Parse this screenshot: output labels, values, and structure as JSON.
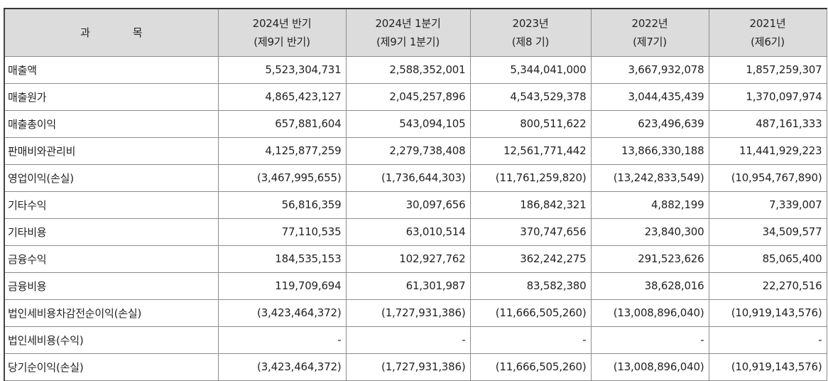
{
  "header": {
    "subject": [
      "과",
      "목"
    ],
    "columns": [
      {
        "line1": "2024년 반기",
        "line2": "(제9기 반기)"
      },
      {
        "line1": "2024년 1분기",
        "line2": "(제9기 1분기)"
      },
      {
        "line1": "2023년",
        "line2": "(제8 기)"
      },
      {
        "line1": "2022년",
        "line2": "(제7기)"
      },
      {
        "line1": "2021년",
        "line2": "(제6기)"
      }
    ]
  },
  "rows": [
    {
      "label": "매출액",
      "values": [
        "5,523,304,731",
        "2,588,352,001",
        "5,344,041,000",
        "3,667,932,078",
        "1,857,259,307"
      ]
    },
    {
      "label": "매출원가",
      "values": [
        "4,865,423,127",
        "2,045,257,896",
        "4,543,529,378",
        "3,044,435,439",
        "1,370,097,974"
      ]
    },
    {
      "label": "매출총이익",
      "values": [
        "657,881,604",
        "543,094,105",
        "800,511,622",
        "623,496,639",
        "487,161,333"
      ]
    },
    {
      "label": "판매비와관리비",
      "values": [
        "4,125,877,259",
        "2,279,738,408",
        "12,561,771,442",
        "13,866,330,188",
        "11,441,929,223"
      ]
    },
    {
      "label": "영업이익(손실)",
      "values": [
        "(3,467,995,655)",
        "(1,736,644,303)",
        "(11,761,259,820)",
        "(13,242,833,549)",
        "(10,954,767,890)"
      ]
    },
    {
      "label": "기타수익",
      "values": [
        "56,816,359",
        "30,097,656",
        "186,842,321",
        "4,882,199",
        "7,339,007"
      ]
    },
    {
      "label": "기타비용",
      "values": [
        "77,110,535",
        "63,010,514",
        "370,747,656",
        "23,840,300",
        "34,509,577"
      ]
    },
    {
      "label": "금융수익",
      "values": [
        "184,535,153",
        "102,927,762",
        "362,242,275",
        "291,523,626",
        "85,065,400"
      ]
    },
    {
      "label": "금융비용",
      "values": [
        "119,709,694",
        "61,301,987",
        "83,582,380",
        "38,628,016",
        "22,270,516"
      ]
    },
    {
      "label": "법인세비용차감전순이익(손실)",
      "values": [
        "(3,423,464,372)",
        "(1,727,931,386)",
        "(11,666,505,260)",
        "(13,008,896,040)",
        "(10,919,143,576)"
      ]
    },
    {
      "label": "법인세비용(수익)",
      "values": [
        "-",
        "-",
        "-",
        "-",
        "-"
      ]
    },
    {
      "label": "당기순이익(손실)",
      "values": [
        "(3,423,464,372)",
        "(1,727,931,386)",
        "(11,666,505,260)",
        "(13,008,896,040)",
        "(10,919,143,576)"
      ]
    }
  ]
}
